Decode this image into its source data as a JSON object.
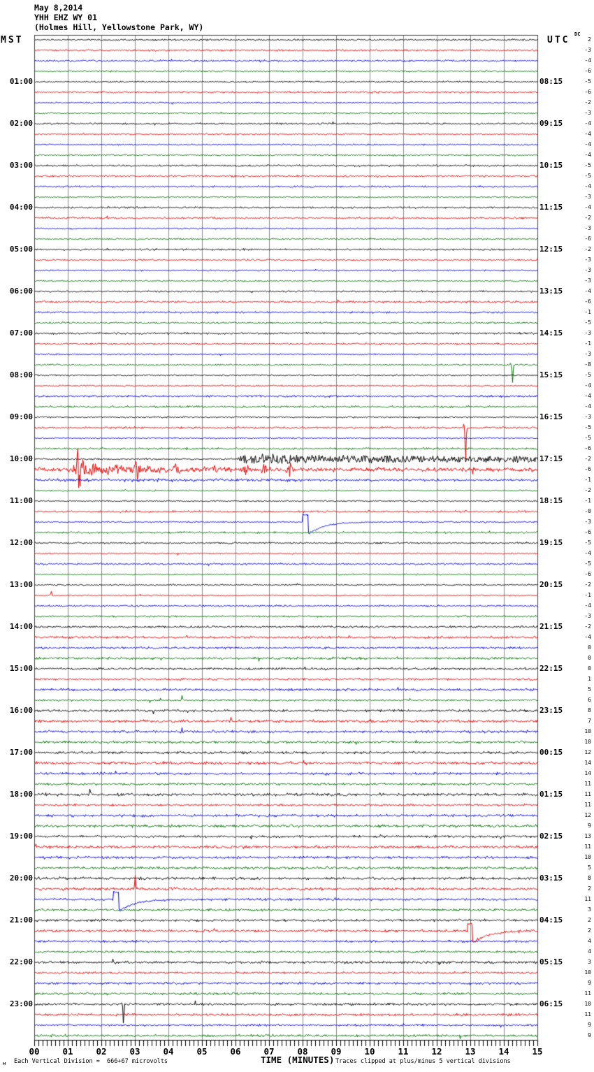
{
  "header": {
    "date": "May 8,2014",
    "station": "YHH EHZ WY 01",
    "location": "(Holmes Hill, Yellowstone Park, WY)"
  },
  "axis_titles": {
    "left": "MST",
    "right": "UTC",
    "dc": "DC",
    "bottom": "TIME (MINUTES)"
  },
  "footer": {
    "scale_note": "Each Vertical Division =  666+67 microvolts",
    "clip_note": "Traces clipped at plus/minus 5 vertical divisions",
    "watermark": "м"
  },
  "chart_data": {
    "type": "line",
    "subtype": "helicorder",
    "minutes_per_line": 15,
    "lines": 96,
    "x_range": [
      0,
      15
    ],
    "grid": true,
    "x_tick_labels": [
      "00",
      "01",
      "02",
      "03",
      "04",
      "05",
      "06",
      "07",
      "08",
      "09",
      "10",
      "11",
      "12",
      "13",
      "14",
      "15"
    ],
    "trace_color_cycle": [
      "#000000",
      "#e80000",
      "#0000dd",
      "#007400"
    ],
    "grid_color": "#8a8a8a",
    "frame_color": "#444444",
    "mst_labels": [
      {
        "row": 4,
        "label": "01:00"
      },
      {
        "row": 8,
        "label": "02:00"
      },
      {
        "row": 12,
        "label": "03:00"
      },
      {
        "row": 16,
        "label": "04:00"
      },
      {
        "row": 20,
        "label": "05:00"
      },
      {
        "row": 24,
        "label": "06:00"
      },
      {
        "row": 28,
        "label": "07:00"
      },
      {
        "row": 32,
        "label": "08:00"
      },
      {
        "row": 36,
        "label": "09:00"
      },
      {
        "row": 40,
        "label": "10:00"
      },
      {
        "row": 44,
        "label": "11:00"
      },
      {
        "row": 48,
        "label": "12:00"
      },
      {
        "row": 52,
        "label": "13:00"
      },
      {
        "row": 56,
        "label": "14:00"
      },
      {
        "row": 60,
        "label": "15:00"
      },
      {
        "row": 64,
        "label": "16:00"
      },
      {
        "row": 68,
        "label": "17:00"
      },
      {
        "row": 72,
        "label": "18:00"
      },
      {
        "row": 76,
        "label": "19:00"
      },
      {
        "row": 80,
        "label": "20:00"
      },
      {
        "row": 84,
        "label": "21:00"
      },
      {
        "row": 88,
        "label": "22:00"
      },
      {
        "row": 92,
        "label": "23:00"
      }
    ],
    "utc_labels": [
      {
        "row": 4,
        "label": "08:15"
      },
      {
        "row": 8,
        "label": "09:15"
      },
      {
        "row": 12,
        "label": "10:15"
      },
      {
        "row": 16,
        "label": "11:15"
      },
      {
        "row": 20,
        "label": "12:15"
      },
      {
        "row": 24,
        "label": "13:15"
      },
      {
        "row": 28,
        "label": "14:15"
      },
      {
        "row": 32,
        "label": "15:15"
      },
      {
        "row": 36,
        "label": "16:15"
      },
      {
        "row": 40,
        "label": "17:15"
      },
      {
        "row": 44,
        "label": "18:15"
      },
      {
        "row": 48,
        "label": "19:15"
      },
      {
        "row": 52,
        "label": "20:15"
      },
      {
        "row": 56,
        "label": "21:15"
      },
      {
        "row": 60,
        "label": "22:15"
      },
      {
        "row": 64,
        "label": "23:15"
      },
      {
        "row": 68,
        "label": "00:15"
      },
      {
        "row": 72,
        "label": "01:15"
      },
      {
        "row": 76,
        "label": "02:15"
      },
      {
        "row": 80,
        "label": "03:15"
      },
      {
        "row": 84,
        "label": "04:15"
      },
      {
        "row": 88,
        "label": "05:15"
      },
      {
        "row": 92,
        "label": "06:15"
      }
    ],
    "dc_offsets": [
      "2",
      "-3",
      "-4",
      "-6",
      "-5",
      "-6",
      "-2",
      "-3",
      "-4",
      "-4",
      "-4",
      "-4",
      "-5",
      "-5",
      "-4",
      "-3",
      "-4",
      "-2",
      "-3",
      "-6",
      "-2",
      "-3",
      "-3",
      "-3",
      "-4",
      "-6",
      "-1",
      "-5",
      "-3",
      "-1",
      "-3",
      "-8",
      "-5",
      "-4",
      "-4",
      "-4",
      "-3",
      "-5",
      "-5",
      "-6",
      "-2",
      "-6",
      "-1",
      "-2",
      "-1",
      "-0",
      "-3",
      "-6",
      "-5",
      "-4",
      "-5",
      "-6",
      "-2",
      "-1",
      "-4",
      "-3",
      "-2",
      "-4",
      "0",
      "0",
      "0",
      "1",
      "5",
      "6",
      "8",
      "7",
      "10",
      "10",
      "12",
      "14",
      "14",
      "11",
      "11",
      "11",
      "12",
      "9",
      "13",
      "11",
      "10",
      "5",
      "8",
      "2",
      "11",
      "3",
      "2",
      "2",
      "4",
      "4",
      "3",
      "10",
      "9",
      "11",
      "10",
      "11",
      "9",
      "9"
    ],
    "events": [
      {
        "row": 31,
        "minute": 14.25,
        "type": "spike-down",
        "amp": 25
      },
      {
        "row": 37,
        "minute": 12.85,
        "type": "spike-down",
        "amp": 52
      },
      {
        "row": 40,
        "minute": 6.0,
        "type": "quake-onset",
        "max_amp": 7
      },
      {
        "row": 41,
        "minute": 1.33,
        "type": "quake-burst",
        "max_amp": 36
      },
      {
        "row": 46,
        "minute": 8.0,
        "type": "cal-pulse"
      },
      {
        "row": 53,
        "minute": 0.5,
        "type": "spike-up",
        "amp": 6
      },
      {
        "row": 63,
        "minute": 4.4,
        "type": "spike-up",
        "amp": 7
      },
      {
        "row": 65,
        "minute": 5.85,
        "type": "spike-up",
        "amp": 8
      },
      {
        "row": 72,
        "minute": 1.65,
        "type": "spike-up",
        "amp": 9
      },
      {
        "row": 81,
        "minute": 3.0,
        "type": "spike-up",
        "amp": 20
      },
      {
        "row": 82,
        "minute": 2.35,
        "type": "cal-pulse"
      },
      {
        "row": 85,
        "minute": 12.9,
        "type": "cal-pulse"
      },
      {
        "row": 92,
        "minute": 2.65,
        "type": "spike-down",
        "amp": 30
      }
    ],
    "row_amp_overrides": {
      "41": 2.8,
      "42": 2.0
    }
  }
}
